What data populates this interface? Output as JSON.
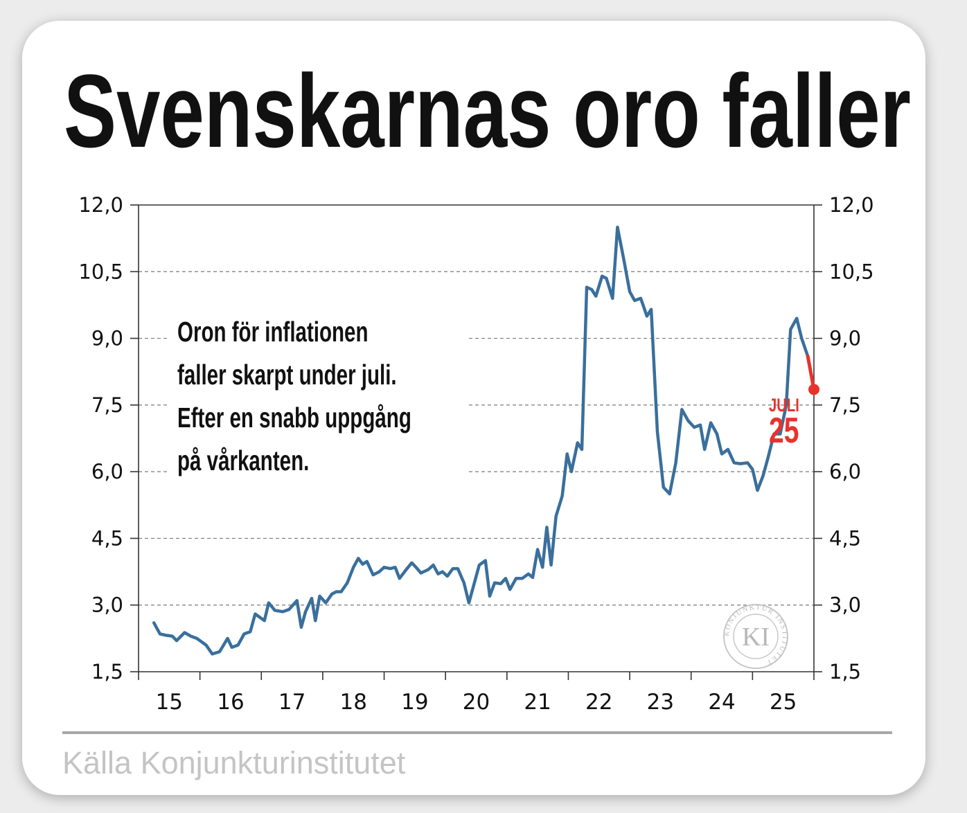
{
  "title": "Svenskarnas oro faller",
  "annotation": {
    "lines": [
      "Oron för inflationen",
      "faller skarpt under juli.",
      "Efter en snabb uppgång",
      "på vårkanten."
    ]
  },
  "marker": {
    "month": "JULI",
    "year": "25"
  },
  "source": "Källa Konjunkturinstitutet",
  "logo": {
    "text": "KI",
    "ring": "KONJUNKTUR INSTITUTET"
  },
  "colors": {
    "line": "#3a6f9c",
    "highlight": "#e8322b",
    "grid": "#7a7a7a"
  },
  "chart_data": {
    "type": "line",
    "y_ticks": [
      "1,5",
      "3,0",
      "4,5",
      "6,0",
      "7,5",
      "9,0",
      "10,5",
      "12,0"
    ],
    "x_ticks": [
      "15",
      "16",
      "17",
      "18",
      "19",
      "20",
      "21",
      "22",
      "23",
      "24",
      "25"
    ],
    "ylim": [
      1.5,
      12.0
    ],
    "xlim": [
      2015.0,
      2026.0
    ],
    "grid": "horizontal dashed",
    "series": [
      {
        "values": [
          [
            2015.25,
            2.6
          ],
          [
            2015.35,
            2.35
          ],
          [
            2015.45,
            2.32
          ],
          [
            2015.55,
            2.3
          ],
          [
            2015.62,
            2.2
          ],
          [
            2015.75,
            2.38
          ],
          [
            2015.85,
            2.3
          ],
          [
            2015.95,
            2.25
          ],
          [
            2016.1,
            2.1
          ],
          [
            2016.2,
            1.9
          ],
          [
            2016.32,
            1.95
          ],
          [
            2016.45,
            2.25
          ],
          [
            2016.52,
            2.05
          ],
          [
            2016.62,
            2.1
          ],
          [
            2016.72,
            2.35
          ],
          [
            2016.82,
            2.4
          ],
          [
            2016.9,
            2.8
          ],
          [
            2017.05,
            2.65
          ],
          [
            2017.12,
            3.05
          ],
          [
            2017.22,
            2.88
          ],
          [
            2017.35,
            2.85
          ],
          [
            2017.45,
            2.9
          ],
          [
            2017.58,
            3.1
          ],
          [
            2017.65,
            2.5
          ],
          [
            2017.72,
            2.85
          ],
          [
            2017.82,
            3.15
          ],
          [
            2017.88,
            2.65
          ],
          [
            2017.95,
            3.2
          ],
          [
            2018.05,
            3.05
          ],
          [
            2018.15,
            3.25
          ],
          [
            2018.22,
            3.3
          ],
          [
            2018.3,
            3.3
          ],
          [
            2018.4,
            3.5
          ],
          [
            2018.5,
            3.85
          ],
          [
            2018.58,
            4.05
          ],
          [
            2018.65,
            3.92
          ],
          [
            2018.72,
            3.98
          ],
          [
            2018.82,
            3.68
          ],
          [
            2018.92,
            3.75
          ],
          [
            2019.0,
            3.85
          ],
          [
            2019.1,
            3.82
          ],
          [
            2019.18,
            3.85
          ],
          [
            2019.25,
            3.6
          ],
          [
            2019.35,
            3.78
          ],
          [
            2019.45,
            3.95
          ],
          [
            2019.52,
            3.85
          ],
          [
            2019.6,
            3.72
          ],
          [
            2019.72,
            3.8
          ],
          [
            2019.8,
            3.9
          ],
          [
            2019.88,
            3.7
          ],
          [
            2019.95,
            3.75
          ],
          [
            2020.03,
            3.65
          ],
          [
            2020.12,
            3.82
          ],
          [
            2020.2,
            3.82
          ],
          [
            2020.3,
            3.5
          ],
          [
            2020.38,
            3.05
          ],
          [
            2020.45,
            3.4
          ],
          [
            2020.55,
            3.9
          ],
          [
            2020.65,
            4.0
          ],
          [
            2020.72,
            3.2
          ],
          [
            2020.8,
            3.5
          ],
          [
            2020.9,
            3.48
          ],
          [
            2020.98,
            3.6
          ],
          [
            2021.05,
            3.35
          ],
          [
            2021.15,
            3.6
          ],
          [
            2021.25,
            3.6
          ],
          [
            2021.35,
            3.7
          ],
          [
            2021.42,
            3.62
          ],
          [
            2021.5,
            4.25
          ],
          [
            2021.58,
            3.85
          ],
          [
            2021.65,
            4.75
          ],
          [
            2021.72,
            3.9
          ],
          [
            2021.8,
            5.0
          ],
          [
            2021.9,
            5.45
          ],
          [
            2021.98,
            6.4
          ],
          [
            2022.05,
            6.0
          ],
          [
            2022.15,
            6.65
          ],
          [
            2022.22,
            6.5
          ],
          [
            2022.3,
            10.15
          ],
          [
            2022.38,
            10.1
          ],
          [
            2022.45,
            9.95
          ],
          [
            2022.55,
            10.4
          ],
          [
            2022.62,
            10.35
          ],
          [
            2022.72,
            9.9
          ],
          [
            2022.8,
            11.5
          ],
          [
            2022.9,
            10.8
          ],
          [
            2023.0,
            10.05
          ],
          [
            2023.08,
            9.85
          ],
          [
            2023.18,
            9.9
          ],
          [
            2023.28,
            9.5
          ],
          [
            2023.35,
            9.65
          ],
          [
            2023.45,
            6.9
          ],
          [
            2023.55,
            5.65
          ],
          [
            2023.65,
            5.5
          ],
          [
            2023.75,
            6.2
          ],
          [
            2023.85,
            7.4
          ],
          [
            2023.95,
            7.15
          ],
          [
            2024.05,
            7.0
          ],
          [
            2024.15,
            7.05
          ],
          [
            2024.22,
            6.5
          ],
          [
            2024.32,
            7.1
          ],
          [
            2024.42,
            6.85
          ],
          [
            2024.5,
            6.4
          ],
          [
            2024.6,
            6.5
          ],
          [
            2024.7,
            6.2
          ],
          [
            2024.8,
            6.18
          ],
          [
            2024.92,
            6.2
          ],
          [
            2025.0,
            6.05
          ],
          [
            2025.08,
            5.58
          ],
          [
            2025.17,
            5.9
          ],
          [
            2025.25,
            6.3
          ],
          [
            2025.35,
            6.85
          ],
          [
            2025.45,
            6.85
          ],
          [
            2025.55,
            7.5
          ],
          [
            2025.62,
            9.2
          ],
          [
            2025.72,
            9.45
          ],
          [
            2025.8,
            9.0
          ],
          [
            2025.9,
            8.6
          ]
        ]
      },
      {
        "values": [
          [
            2025.9,
            8.6
          ],
          [
            2026.0,
            7.85
          ]
        ]
      }
    ]
  }
}
